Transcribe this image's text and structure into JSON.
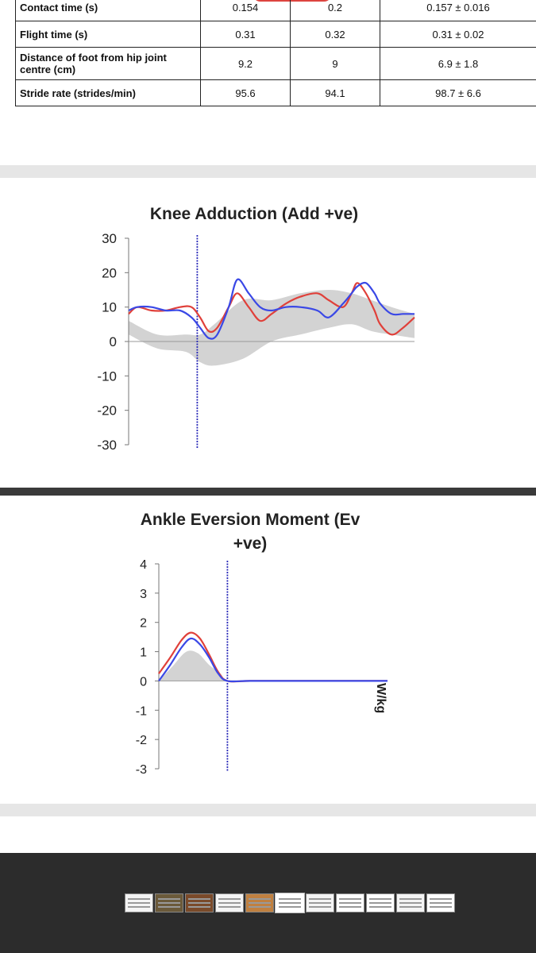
{
  "table": {
    "rows": [
      {
        "label": "Contact time (s)",
        "v1": "0.154",
        "v2": "0.2",
        "ref": "0.157 ± 0.016"
      },
      {
        "label": "Flight time (s)",
        "v1": "0.31",
        "v2": "0.32",
        "ref": "0.31 ± 0.02"
      },
      {
        "label": "Distance of foot from hip joint centre (cm)",
        "v1": "9.2",
        "v2": "9",
        "ref": "6.9 ± 1.8"
      },
      {
        "label": "Stride rate (strides/min)",
        "v1": "95.6",
        "v2": "94.1",
        "ref": "98.7 ± 6.6"
      }
    ]
  },
  "colors": {
    "red": "#e0403a",
    "blue": "#3a48e6",
    "band": "#d3d3d3",
    "marker": "#2a2ab8"
  },
  "chart_data": [
    {
      "type": "line",
      "title": "Knee Adduction (Add +ve)",
      "xlabel": "",
      "ylabel": "",
      "ylim": [
        -30,
        30
      ],
      "yticks": [
        "30",
        "20",
        "10",
        "0",
        "-10",
        "-20",
        "-30"
      ],
      "xlim": [
        0,
        100
      ],
      "event_line_x": 24,
      "series": [
        {
          "name": "red",
          "x": [
            0,
            3,
            8,
            13,
            18,
            22,
            25,
            28,
            31,
            35,
            38,
            42,
            46,
            50,
            55,
            60,
            66,
            70,
            75,
            78,
            80,
            83,
            86,
            88,
            92,
            96,
            100
          ],
          "values": [
            8,
            10,
            9,
            9,
            10,
            10,
            7,
            3,
            4,
            10,
            14,
            10,
            6,
            8,
            11,
            13,
            14,
            12,
            10,
            14,
            17,
            14,
            9,
            5,
            2,
            4,
            7
          ]
        },
        {
          "name": "blue",
          "x": [
            0,
            3,
            8,
            13,
            18,
            22,
            25,
            28,
            31,
            35,
            38,
            42,
            46,
            50,
            55,
            60,
            66,
            70,
            75,
            78,
            80,
            83,
            86,
            88,
            92,
            96,
            100
          ],
          "values": [
            9,
            10,
            10,
            9,
            9,
            7,
            4,
            1,
            2,
            10,
            18,
            14,
            10,
            9,
            10,
            10,
            9,
            7,
            11,
            14,
            16,
            17,
            14,
            11,
            8,
            8,
            8
          ]
        },
        {
          "name": "band_upper",
          "x": [
            0,
            10,
            20,
            25,
            30,
            40,
            50,
            60,
            70,
            78,
            85,
            92,
            100
          ],
          "values": [
            6,
            2,
            2,
            2,
            5,
            12,
            12,
            14,
            15,
            14,
            12,
            10,
            8
          ]
        },
        {
          "name": "band_lower",
          "x": [
            0,
            10,
            20,
            25,
            30,
            40,
            50,
            60,
            70,
            78,
            85,
            92,
            100
          ],
          "values": [
            2,
            -2,
            -3,
            -6,
            -7,
            -5,
            0,
            2,
            4,
            5,
            3,
            2,
            1
          ]
        }
      ]
    },
    {
      "type": "line",
      "title": "Ankle Eversion Moment (Ev +ve)",
      "title_lines": [
        "Ankle Eversion Moment (Ev",
        "+ve)"
      ],
      "ylabel_fragment": "W/kg",
      "xlabel": "",
      "ylim": [
        -3,
        4
      ],
      "yticks": [
        "4",
        "3",
        "2",
        "1",
        "0",
        "-1",
        "-2",
        "-3"
      ],
      "xlim": [
        0,
        100
      ],
      "event_line_x": 30,
      "series": [
        {
          "name": "red",
          "x": [
            0,
            5,
            10,
            14,
            18,
            22,
            26,
            30,
            40,
            60,
            80,
            100
          ],
          "values": [
            0.25,
            0.8,
            1.4,
            1.65,
            1.45,
            0.9,
            0.3,
            0,
            0,
            0,
            0,
            0
          ]
        },
        {
          "name": "blue",
          "x": [
            0,
            5,
            10,
            14,
            18,
            22,
            26,
            30,
            40,
            60,
            80,
            100
          ],
          "values": [
            0,
            0.55,
            1.15,
            1.45,
            1.25,
            0.8,
            0.25,
            0,
            0,
            0,
            0,
            0
          ]
        },
        {
          "name": "band_upper",
          "x": [
            0,
            6,
            12,
            17,
            22,
            27,
            30,
            40,
            60,
            100
          ],
          "values": [
            0,
            0.5,
            1.0,
            0.95,
            0.55,
            0.25,
            0,
            0,
            0,
            0
          ]
        },
        {
          "name": "band_lower",
          "x": [
            0,
            6,
            12,
            17,
            22,
            27,
            30,
            40,
            60,
            100
          ],
          "values": [
            0,
            0,
            0,
            0,
            0,
            0,
            0,
            0,
            0,
            0
          ]
        }
      ]
    }
  ],
  "footer": {
    "thumbnail_count": 11,
    "active_thumbnail": 5
  }
}
